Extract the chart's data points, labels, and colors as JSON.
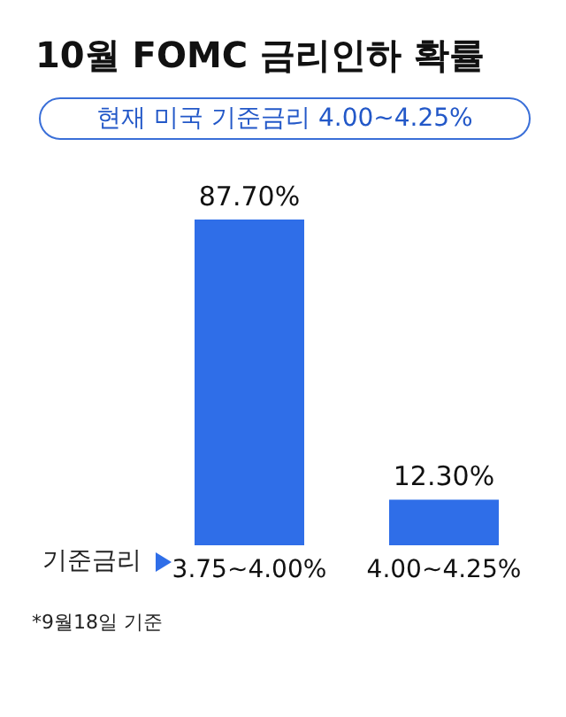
{
  "chart_data": {
    "type": "bar",
    "title": "10월 FOMC 금리인하 확률",
    "subtitle": "현재 미국 기준금리 4.00~4.25%",
    "xlabel": "기준금리",
    "categories": [
      "3.75~4.00%",
      "4.00~4.25%"
    ],
    "values": [
      87.7,
      12.3
    ],
    "color": "#2f6ee8",
    "value_labels": [
      "87.70%",
      "12.30%"
    ],
    "annotations": [
      "*9월18일 기준"
    ]
  }
}
